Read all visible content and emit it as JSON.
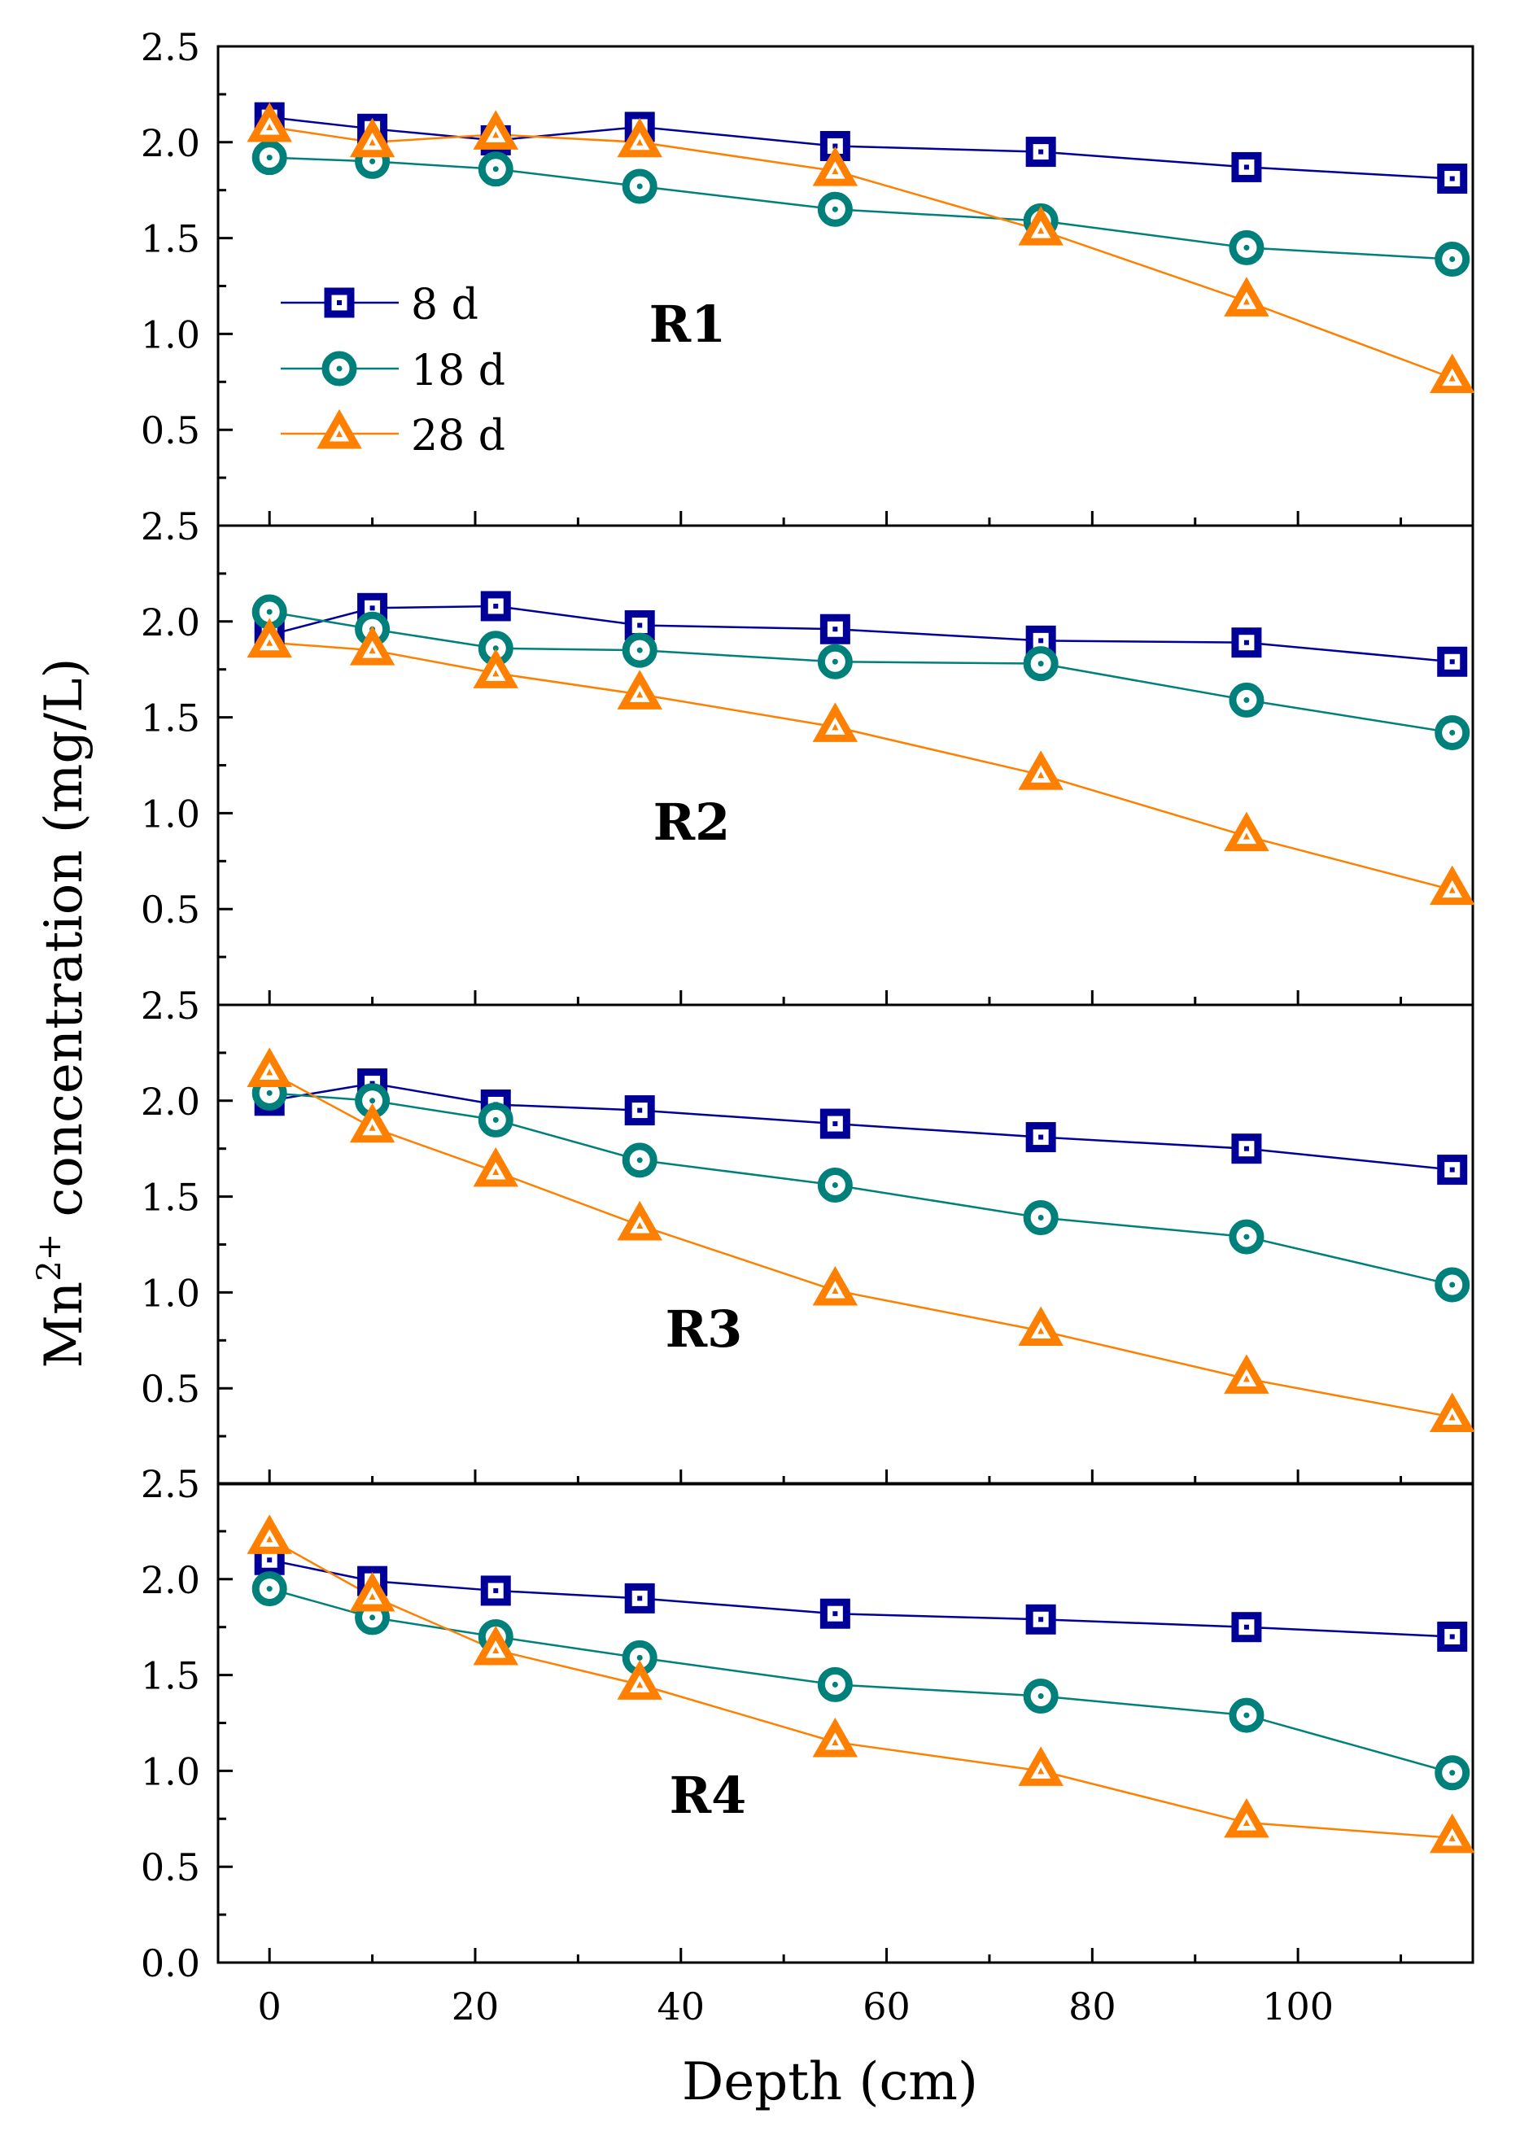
{
  "figure": {
    "xlabel": "Depth (cm)",
    "ylabel_base": "Mn",
    "ylabel_sup": "2+",
    "ylabel_rest": " concentration (mg/L)"
  },
  "legend": [
    {
      "label": "8 d",
      "series": 0
    },
    {
      "label": "18 d",
      "series": 1
    },
    {
      "label": "28 d",
      "series": 2
    }
  ],
  "colors": {
    "8 d": "#000099",
    "18 d": "#00807a",
    "28 d": "#ff8000"
  },
  "chart_data": [
    {
      "type": "line",
      "panel_label": "R1",
      "x": [
        0,
        10,
        22,
        36,
        55,
        75,
        95,
        115
      ],
      "series": [
        {
          "name": "8 d",
          "marker": "square",
          "values": [
            2.13,
            2.07,
            2.01,
            2.08,
            1.98,
            1.95,
            1.87,
            1.81
          ]
        },
        {
          "name": "18 d",
          "marker": "circle",
          "values": [
            1.92,
            1.9,
            1.86,
            1.77,
            1.65,
            1.59,
            1.45,
            1.39
          ]
        },
        {
          "name": "28 d",
          "marker": "triangle",
          "values": [
            2.08,
            2.0,
            2.04,
            2.0,
            1.85,
            1.54,
            1.17,
            0.77
          ]
        }
      ],
      "xlim": [
        -5,
        117
      ],
      "ylim": [
        0,
        2.5
      ],
      "yticks": [
        "0.5",
        "1.0",
        "1.5",
        "2.0",
        "2.5"
      ]
    },
    {
      "type": "line",
      "panel_label": "R2",
      "x": [
        0,
        10,
        22,
        36,
        55,
        75,
        95,
        115
      ],
      "series": [
        {
          "name": "8 d",
          "marker": "square",
          "values": [
            1.93,
            2.07,
            2.08,
            1.98,
            1.96,
            1.9,
            1.89,
            1.79
          ]
        },
        {
          "name": "18 d",
          "marker": "circle",
          "values": [
            2.05,
            1.96,
            1.86,
            1.85,
            1.79,
            1.78,
            1.59,
            1.42
          ]
        },
        {
          "name": "28 d",
          "marker": "triangle",
          "values": [
            1.89,
            1.85,
            1.73,
            1.62,
            1.45,
            1.2,
            0.88,
            0.6
          ]
        }
      ],
      "xlim": [
        -5,
        117
      ],
      "ylim": [
        0,
        2.5
      ],
      "yticks": [
        "0.5",
        "1.0",
        "1.5",
        "2.0",
        "2.5"
      ]
    },
    {
      "type": "line",
      "panel_label": "R3",
      "x": [
        0,
        10,
        22,
        36,
        55,
        75,
        95,
        115
      ],
      "series": [
        {
          "name": "8 d",
          "marker": "square",
          "values": [
            2.0,
            2.09,
            1.98,
            1.95,
            1.88,
            1.81,
            1.75,
            1.64
          ]
        },
        {
          "name": "18 d",
          "marker": "circle",
          "values": [
            2.04,
            2.0,
            1.9,
            1.69,
            1.56,
            1.39,
            1.29,
            1.04
          ]
        },
        {
          "name": "28 d",
          "marker": "triangle",
          "values": [
            2.15,
            1.86,
            1.63,
            1.35,
            1.01,
            0.8,
            0.55,
            0.35
          ]
        }
      ],
      "xlim": [
        -5,
        117
      ],
      "ylim": [
        0,
        2.5
      ],
      "yticks": [
        "0.5",
        "1.0",
        "1.5",
        "2.0",
        "2.5"
      ]
    },
    {
      "type": "line",
      "panel_label": "R4",
      "x": [
        0,
        10,
        22,
        36,
        55,
        75,
        95,
        115
      ],
      "series": [
        {
          "name": "8 d",
          "marker": "square",
          "values": [
            2.1,
            1.99,
            1.94,
            1.9,
            1.82,
            1.79,
            1.75,
            1.7
          ]
        },
        {
          "name": "18 d",
          "marker": "circle",
          "values": [
            1.95,
            1.8,
            1.7,
            1.59,
            1.45,
            1.39,
            1.29,
            0.99
          ]
        },
        {
          "name": "28 d",
          "marker": "triangle",
          "values": [
            2.21,
            1.91,
            1.63,
            1.45,
            1.15,
            1.0,
            0.73,
            0.65
          ]
        }
      ],
      "xlim": [
        -5,
        117
      ],
      "ylim": [
        0,
        2.5
      ],
      "yticks": [
        "0.0",
        "0.5",
        "1.0",
        "1.5",
        "2.0",
        "2.5"
      ],
      "xticks": [
        "0",
        "20",
        "40",
        "60",
        "80",
        "100"
      ]
    }
  ]
}
